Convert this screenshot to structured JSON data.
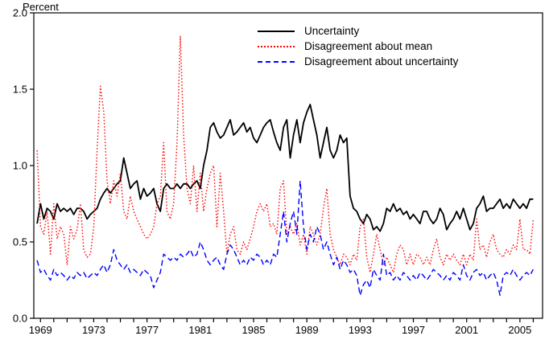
{
  "chart_data": {
    "type": "line",
    "title": "",
    "ylabel": "Percent",
    "xlabel": "",
    "xlim": [
      1968.5,
      2006.7
    ],
    "ylim": [
      0.0,
      2.0
    ],
    "yticks": [
      0.0,
      0.5,
      1.0,
      1.5,
      2.0
    ],
    "ytick_labels": [
      "0.0",
      "0.5",
      "1.0",
      "1.5",
      "2.0"
    ],
    "xticks_labeled": [
      1969,
      1973,
      1977,
      1981,
      1985,
      1989,
      1993,
      1997,
      2001,
      2005
    ],
    "xticks_minor_every_years": 1,
    "grid": false,
    "legend_position": "top-center",
    "x_start": 1968.75,
    "x_step": 0.25,
    "frequency": "quarterly",
    "series": [
      {
        "name": "Uncertainty",
        "color": "#000000",
        "style": "solid",
        "values": [
          0.62,
          0.75,
          0.65,
          0.72,
          0.7,
          0.65,
          0.75,
          0.7,
          0.72,
          0.7,
          0.72,
          0.68,
          0.72,
          0.72,
          0.7,
          0.65,
          0.68,
          0.7,
          0.72,
          0.78,
          0.82,
          0.85,
          0.82,
          0.85,
          0.88,
          0.9,
          1.05,
          0.95,
          0.85,
          0.88,
          0.9,
          0.78,
          0.85,
          0.8,
          0.82,
          0.85,
          0.75,
          0.7,
          0.85,
          0.88,
          0.85,
          0.85,
          0.88,
          0.85,
          0.88,
          0.88,
          0.85,
          0.88,
          0.9,
          0.85,
          1.0,
          1.1,
          1.25,
          1.28,
          1.22,
          1.18,
          1.2,
          1.25,
          1.3,
          1.2,
          1.22,
          1.25,
          1.28,
          1.22,
          1.25,
          1.18,
          1.15,
          1.2,
          1.25,
          1.28,
          1.3,
          1.22,
          1.15,
          1.1,
          1.25,
          1.3,
          1.05,
          1.2,
          1.3,
          1.15,
          1.28,
          1.35,
          1.4,
          1.3,
          1.2,
          1.05,
          1.15,
          1.25,
          1.1,
          1.05,
          1.1,
          1.2,
          1.15,
          1.18,
          0.8,
          0.72,
          0.7,
          0.65,
          0.62,
          0.68,
          0.65,
          0.58,
          0.6,
          0.57,
          0.62,
          0.72,
          0.7,
          0.75,
          0.7,
          0.72,
          0.68,
          0.7,
          0.65,
          0.68,
          0.65,
          0.62,
          0.7,
          0.7,
          0.65,
          0.62,
          0.65,
          0.72,
          0.68,
          0.58,
          0.62,
          0.65,
          0.7,
          0.65,
          0.72,
          0.65,
          0.58,
          0.62,
          0.72,
          0.75,
          0.8,
          0.7,
          0.72,
          0.72,
          0.75,
          0.78,
          0.72,
          0.75,
          0.72,
          0.78,
          0.75,
          0.72,
          0.75,
          0.72,
          0.78,
          0.78
        ]
      },
      {
        "name": "Disagreement about mean",
        "color": "#ff0000",
        "style": "dotted",
        "values": [
          1.1,
          0.6,
          0.55,
          0.7,
          0.42,
          0.75,
          0.52,
          0.6,
          0.55,
          0.35,
          0.6,
          0.52,
          0.58,
          0.75,
          0.45,
          0.4,
          0.42,
          0.6,
          1.1,
          1.52,
          1.35,
          0.9,
          0.75,
          0.9,
          0.8,
          0.95,
          0.7,
          0.65,
          0.8,
          0.7,
          0.65,
          0.6,
          0.55,
          0.52,
          0.55,
          0.6,
          0.75,
          0.8,
          1.15,
          0.7,
          0.65,
          0.75,
          1.15,
          1.85,
          1.2,
          0.85,
          0.75,
          1.0,
          0.7,
          0.95,
          0.7,
          0.85,
          0.95,
          1.0,
          0.6,
          0.95,
          0.7,
          0.42,
          0.55,
          0.6,
          0.45,
          0.42,
          0.5,
          0.45,
          0.52,
          0.6,
          0.7,
          0.75,
          0.7,
          0.75,
          0.6,
          0.62,
          0.55,
          0.85,
          0.9,
          0.55,
          0.6,
          0.55,
          0.62,
          0.48,
          0.55,
          0.42,
          0.6,
          0.55,
          0.48,
          0.55,
          0.72,
          0.85,
          0.55,
          0.45,
          0.4,
          0.35,
          0.42,
          0.4,
          0.35,
          0.42,
          0.38,
          0.6,
          0.65,
          0.4,
          0.3,
          0.42,
          0.55,
          0.45,
          0.35,
          0.4,
          0.35,
          0.3,
          0.42,
          0.48,
          0.45,
          0.35,
          0.42,
          0.35,
          0.42,
          0.4,
          0.35,
          0.4,
          0.35,
          0.45,
          0.52,
          0.4,
          0.35,
          0.42,
          0.38,
          0.42,
          0.38,
          0.35,
          0.42,
          0.35,
          0.42,
          0.38,
          0.65,
          0.45,
          0.48,
          0.4,
          0.5,
          0.55,
          0.45,
          0.42,
          0.4,
          0.45,
          0.42,
          0.48,
          0.45,
          0.65,
          0.45,
          0.45,
          0.42,
          0.65
        ]
      },
      {
        "name": "Disagreement about uncertainty",
        "color": "#0000ff",
        "style": "dashed",
        "values": [
          0.38,
          0.3,
          0.32,
          0.28,
          0.25,
          0.32,
          0.28,
          0.3,
          0.28,
          0.25,
          0.28,
          0.26,
          0.3,
          0.28,
          0.3,
          0.26,
          0.28,
          0.3,
          0.28,
          0.32,
          0.35,
          0.3,
          0.35,
          0.45,
          0.38,
          0.35,
          0.32,
          0.35,
          0.3,
          0.32,
          0.3,
          0.28,
          0.32,
          0.3,
          0.28,
          0.2,
          0.25,
          0.3,
          0.42,
          0.4,
          0.38,
          0.4,
          0.38,
          0.42,
          0.4,
          0.42,
          0.45,
          0.4,
          0.42,
          0.5,
          0.45,
          0.38,
          0.35,
          0.38,
          0.4,
          0.35,
          0.32,
          0.42,
          0.48,
          0.45,
          0.4,
          0.35,
          0.38,
          0.35,
          0.4,
          0.38,
          0.42,
          0.4,
          0.35,
          0.38,
          0.35,
          0.42,
          0.4,
          0.55,
          0.7,
          0.5,
          0.62,
          0.7,
          0.55,
          0.9,
          0.6,
          0.45,
          0.55,
          0.5,
          0.6,
          0.55,
          0.45,
          0.5,
          0.42,
          0.35,
          0.4,
          0.32,
          0.38,
          0.35,
          0.3,
          0.32,
          0.28,
          0.15,
          0.22,
          0.25,
          0.2,
          0.32,
          0.28,
          0.25,
          0.42,
          0.28,
          0.3,
          0.25,
          0.28,
          0.25,
          0.3,
          0.28,
          0.25,
          0.28,
          0.25,
          0.3,
          0.28,
          0.25,
          0.28,
          0.32,
          0.3,
          0.28,
          0.25,
          0.28,
          0.25,
          0.3,
          0.28,
          0.25,
          0.35,
          0.28,
          0.25,
          0.3,
          0.32,
          0.28,
          0.3,
          0.25,
          0.28,
          0.3,
          0.25,
          0.15,
          0.28,
          0.3,
          0.28,
          0.32,
          0.28,
          0.25,
          0.28,
          0.3,
          0.28,
          0.32
        ]
      }
    ]
  }
}
